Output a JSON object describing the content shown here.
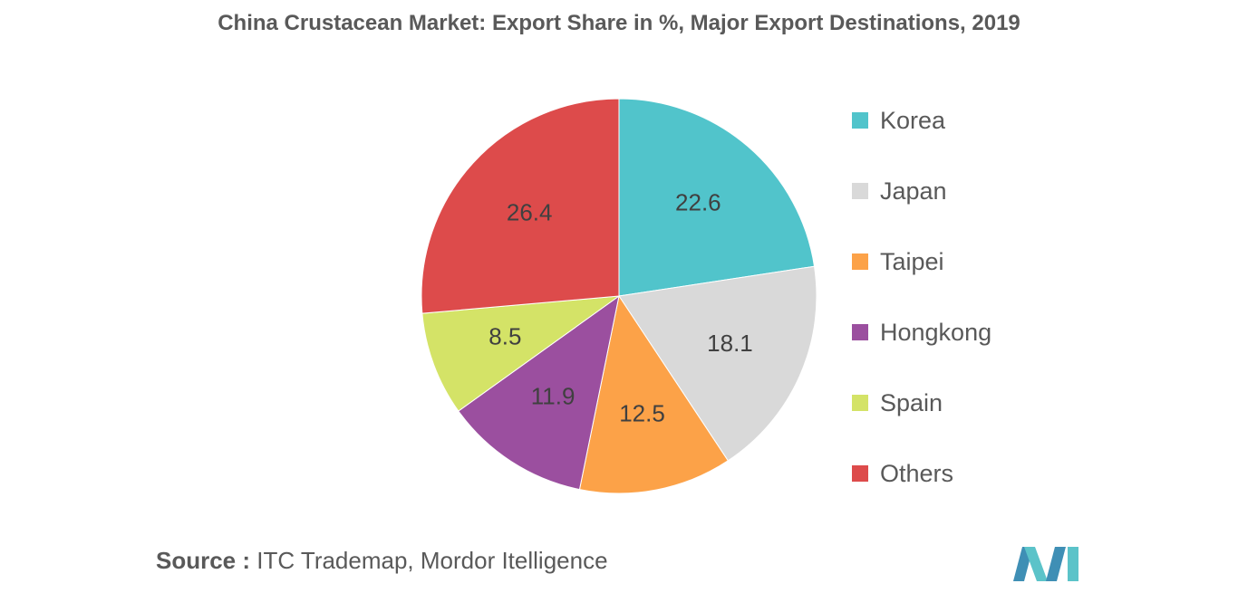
{
  "title": "China Crustacean Market: Export Share in %, Major Export Destinations, 2019",
  "source": {
    "label": "Source :",
    "text": "ITC Trademap, Mordor Itelligence"
  },
  "colors": {
    "Korea": "#51c4cb",
    "Japan": "#d9d9d9",
    "Taipei": "#fca248",
    "Hongkong": "#9b4f9f",
    "Spain": "#d4e367",
    "Others": "#dd4b4b"
  },
  "chart_data": {
    "type": "pie",
    "categories": [
      "Korea",
      "Japan",
      "Taipei",
      "Hongkong",
      "Spain",
      "Others"
    ],
    "values": [
      22.6,
      18.1,
      12.5,
      11.9,
      8.5,
      26.4
    ],
    "labels": [
      "22.6",
      "18.1",
      "12.5",
      "11.9",
      "8.5",
      "26.4"
    ],
    "start_angle": "12 o'clock",
    "direction": "clockwise",
    "legend_position": "right"
  }
}
